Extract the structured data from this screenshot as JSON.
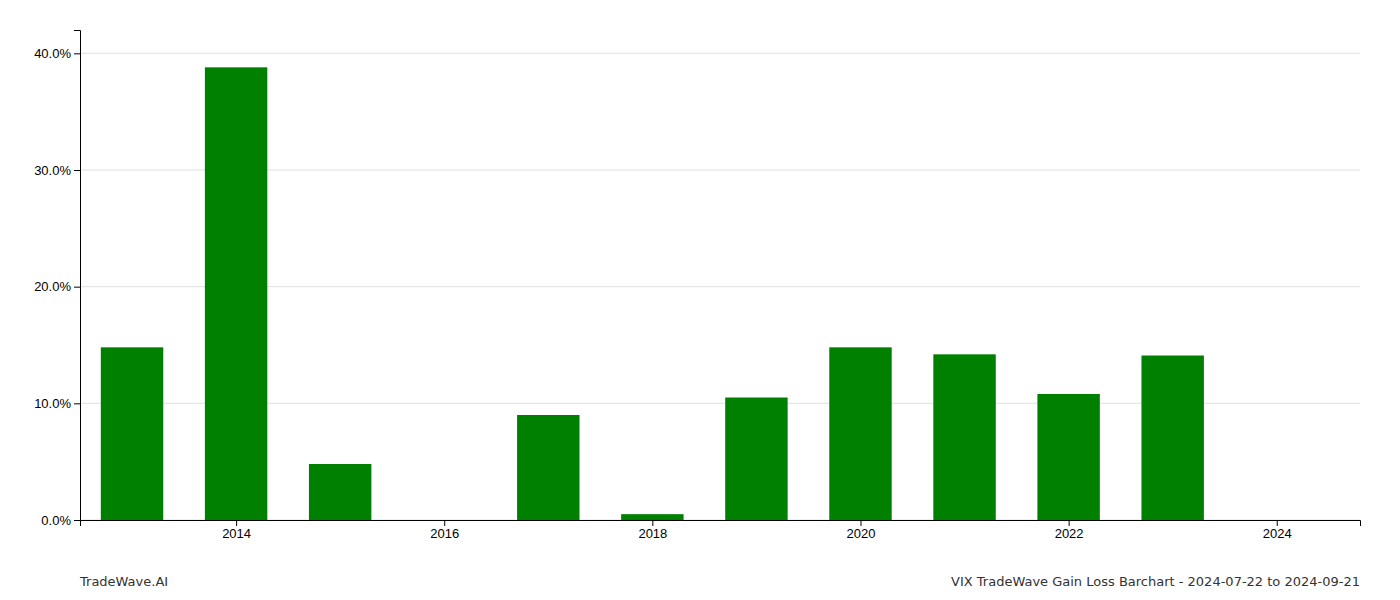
{
  "chart_data": {
    "type": "bar",
    "x": [
      2013,
      2014,
      2015,
      2016,
      2017,
      2018,
      2019,
      2020,
      2021,
      2022,
      2023,
      2024
    ],
    "values": [
      0.148,
      0.388,
      0.048,
      0.0,
      0.09,
      0.005,
      0.105,
      0.148,
      0.142,
      0.108,
      0.141,
      0.0
    ],
    "color": "#008000",
    "xlim": [
      2012.5,
      2024.8
    ],
    "xticks": [
      2014,
      2016,
      2018,
      2020,
      2022,
      2024
    ],
    "ylim": [
      0,
      0.42
    ],
    "yticks": [
      {
        "value": 0.0,
        "label": "0.0%"
      },
      {
        "value": 0.1,
        "label": "10.0%"
      },
      {
        "value": 0.2,
        "label": "20.0%"
      },
      {
        "value": 0.3,
        "label": "30.0%"
      },
      {
        "value": 0.4,
        "label": "40.0%"
      }
    ],
    "grid": true,
    "annotations": [
      "TradeWave.AI",
      "VIX TradeWave Gain Loss Barchart - 2024-07-22 to 2024-09-21"
    ]
  }
}
